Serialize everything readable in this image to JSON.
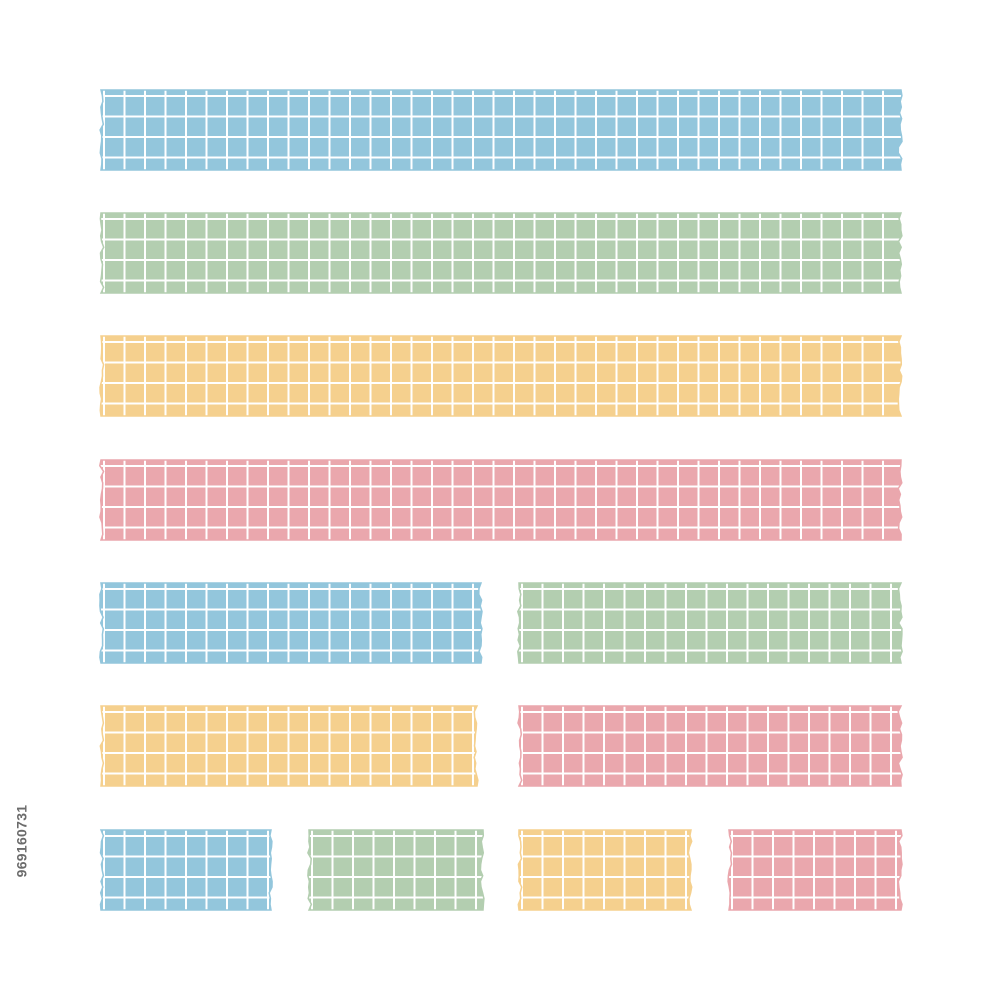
{
  "colors": {
    "blue": "#93c6dc",
    "green": "#b3ceb0",
    "yellow": "#f5d08e",
    "pink": "#eaa7ad",
    "grid": "#ffffff"
  },
  "tapes": [
    {
      "name": "tape-long-blue",
      "color": "blue",
      "style": "washi tape with white grid"
    },
    {
      "name": "tape-long-green",
      "color": "green",
      "style": "washi tape with white grid"
    },
    {
      "name": "tape-long-yellow",
      "color": "yellow",
      "style": "washi tape with white grid"
    },
    {
      "name": "tape-long-pink",
      "color": "pink",
      "style": "washi tape with white grid"
    },
    {
      "name": "tape-medium-blue",
      "color": "blue",
      "style": "washi tape with white grid"
    },
    {
      "name": "tape-medium-green",
      "color": "green",
      "style": "washi tape with white grid"
    },
    {
      "name": "tape-medium-yellow",
      "color": "yellow",
      "style": "washi tape with white grid"
    },
    {
      "name": "tape-medium-pink",
      "color": "pink",
      "style": "washi tape with white grid"
    },
    {
      "name": "tape-short-blue",
      "color": "blue",
      "style": "washi tape with white grid"
    },
    {
      "name": "tape-short-green",
      "color": "green",
      "style": "washi tape with white grid"
    },
    {
      "name": "tape-short-yellow",
      "color": "yellow",
      "style": "washi tape with white grid"
    },
    {
      "name": "tape-short-pink",
      "color": "pink",
      "style": "washi tape with white grid"
    }
  ],
  "stock_id": "969160731"
}
